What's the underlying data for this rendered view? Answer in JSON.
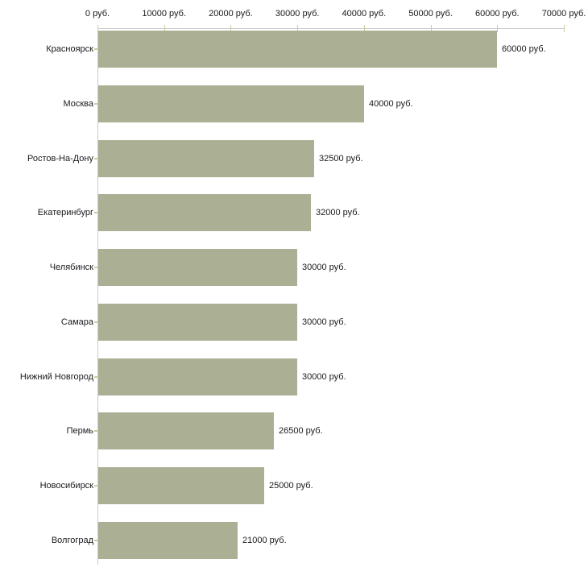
{
  "chart_data": {
    "type": "bar",
    "orientation": "horizontal",
    "categories": [
      "Красноярск",
      "Москва",
      "Ростов-На-Дону",
      "Екатеринбург",
      "Челябинск",
      "Самара",
      "Нижний Новгород",
      "Пермь",
      "Новосибирск",
      "Волгоград"
    ],
    "values": [
      60000,
      40000,
      32500,
      32000,
      30000,
      30000,
      30000,
      26500,
      25000,
      21000
    ],
    "value_labels": [
      "60000 руб.",
      "40000 руб.",
      "32500 руб.",
      "32000 руб.",
      "30000 руб.",
      "30000 руб.",
      "30000 руб.",
      "26500 руб.",
      "25000 руб.",
      "21000 руб."
    ],
    "x_tick_labels": [
      "0 руб.",
      "10000 руб.",
      "20000 руб.",
      "30000 руб.",
      "40000 руб.",
      "50000 руб.",
      "60000 руб.",
      "70000 руб."
    ],
    "xlim": [
      0,
      70000
    ],
    "x_tick_step": 10000,
    "title": "",
    "xlabel": "",
    "ylabel": "",
    "legend": "none",
    "grid": "off",
    "axis_position": "top",
    "colors": {
      "bar": "#abb094",
      "tick": "#c9cd9e",
      "axis_line": "#c9c9c9",
      "text": "#1a1a1a",
      "background": "#ffffff"
    }
  }
}
